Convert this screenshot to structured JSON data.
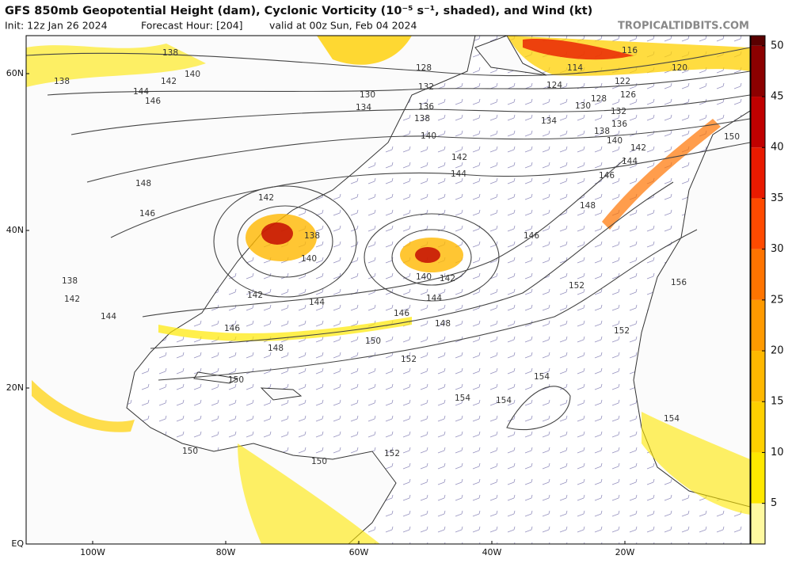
{
  "header": {
    "title": "GFS 850mb Geopotential Height (dam), Cyclonic Vorticity (10⁻⁵ s⁻¹, shaded), and Wind (kt)",
    "init": "Init: 12z Jan 26 2024",
    "forecast_hour": "Forecast Hour: [204]",
    "valid": "valid at 00z Sun, Feb 04 2024",
    "site": "TROPICALTIDBITS.COM"
  },
  "map": {
    "lat_labels": [
      "60N",
      "40N",
      "20N",
      "EQ"
    ],
    "lon_labels": [
      "100W",
      "80W",
      "60W",
      "40W",
      "20W"
    ],
    "contour_labels": [
      138,
      138,
      140,
      142,
      144,
      146,
      148,
      146,
      142,
      138,
      140,
      142,
      144,
      146,
      148,
      150,
      152,
      150,
      150,
      150,
      152,
      154,
      154,
      154,
      152,
      152,
      156,
      148,
      146,
      144,
      146,
      148,
      142,
      140,
      144,
      142,
      140,
      138,
      136,
      132,
      128,
      130,
      134,
      134,
      130,
      128,
      124,
      122,
      126,
      132,
      136,
      138,
      140,
      142,
      144,
      146,
      116,
      114,
      120,
      150,
      154,
      138,
      142,
      144
    ]
  },
  "colorbar": {
    "lim": [
      1,
      51
    ],
    "ticks": [
      5,
      10,
      15,
      20,
      25,
      30,
      35,
      40,
      45,
      50
    ],
    "colors": [
      "#fff9a0",
      "#ffe800",
      "#ffd000",
      "#ffb800",
      "#ff9a00",
      "#ff7400",
      "#ff4a00",
      "#e81a00",
      "#c00000",
      "#8c0000",
      "#5a0000"
    ]
  }
}
